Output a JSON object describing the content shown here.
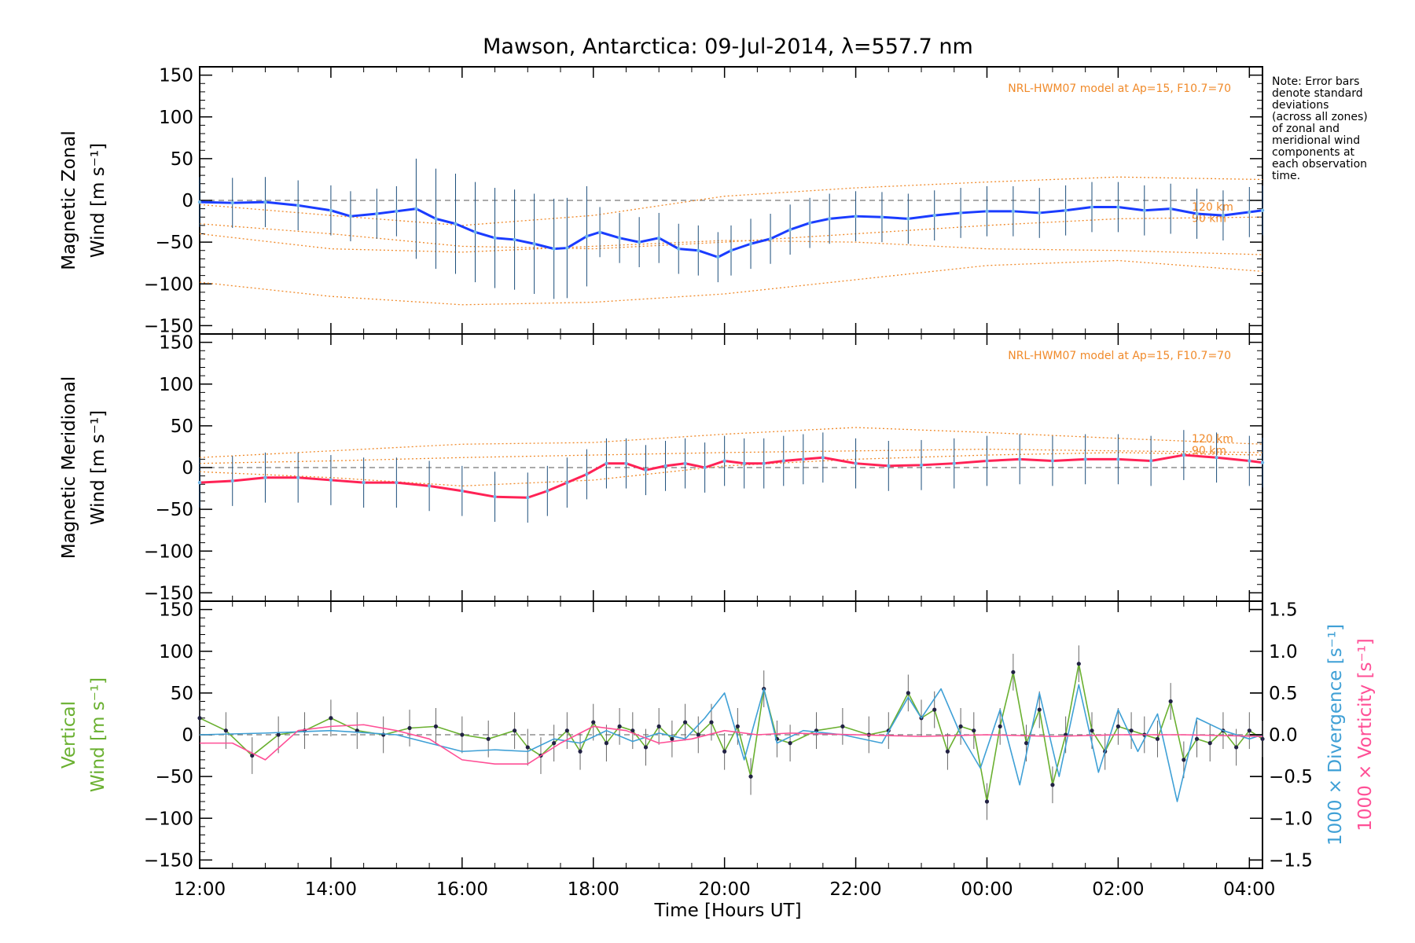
{
  "title": "Mawson, Antarctica: 09-Jul-2014, λ=557.7 nm",
  "note": [
    "Note: Error bars",
    "denote standard",
    "deviations",
    "(across all zones)",
    "of zonal and",
    "meridional wind",
    "components at",
    "each observation",
    "time."
  ],
  "xlabel": "Time [Hours UT]",
  "colors": {
    "zonal": "#1a3cff",
    "zonal_light": "#6fb6e8",
    "meridional": "#ff2255",
    "vertical": "#6ab030",
    "divergence": "#3fa0d6",
    "vorticity": "#ff4f96",
    "model": "#f08a2a",
    "scatter": "#9a9ae8"
  },
  "chart_data": [
    {
      "type": "line",
      "panel": "zonal",
      "ylabel_1": "Magnetic Zonal",
      "ylabel_2": "Wind [m s⁻¹]",
      "model_label": "NRL-HWM07 model at Ap=15, F10.7=70",
      "model_alt_labels": [
        "120 km",
        "90 km"
      ],
      "xlim_hours": [
        12,
        28.2
      ],
      "ylim": [
        -160,
        160
      ],
      "yticks": [
        150,
        100,
        50,
        0,
        -50,
        -100,
        -150
      ],
      "xticks": [
        "12:00",
        "14:00",
        "16:00",
        "18:00",
        "20:00",
        "22:00",
        "00:00",
        "02:00",
        "04:00"
      ],
      "series": [
        {
          "x": [
            12.0,
            12.5,
            13.0,
            13.5,
            14.0,
            14.3,
            14.7,
            15.0,
            15.3,
            15.6,
            15.9,
            16.2,
            16.5,
            16.8,
            17.1,
            17.4,
            17.6,
            17.9,
            18.1,
            18.4,
            18.7,
            19.0,
            19.3,
            19.6,
            19.9,
            20.1,
            20.4,
            20.7,
            21.0,
            21.3,
            21.6,
            22.0,
            22.4,
            22.8,
            23.2,
            23.6,
            24.0,
            24.4,
            24.8,
            25.2,
            25.6,
            26.0,
            26.4,
            26.8,
            27.2,
            27.6,
            28.0,
            28.2
          ],
          "y": [
            -2,
            -3,
            -2,
            -6,
            -12,
            -19,
            -16,
            -13,
            -10,
            -22,
            -28,
            -38,
            -45,
            -47,
            -52,
            -58,
            -57,
            -43,
            -38,
            -45,
            -50,
            -45,
            -58,
            -60,
            -68,
            -60,
            -52,
            -46,
            -35,
            -27,
            -22,
            -19,
            -20,
            -22,
            -18,
            -15,
            -13,
            -13,
            -15,
            -12,
            -8,
            -8,
            -12,
            -10,
            -16,
            -18,
            -14,
            -12
          ]
        }
      ],
      "model_curves": [
        {
          "x": [
            12,
            14,
            16,
            18,
            20,
            22,
            24,
            26,
            28.2
          ],
          "y": [
            -98,
            -115,
            -125,
            -122,
            -112,
            -95,
            -78,
            -72,
            -85
          ]
        },
        {
          "x": [
            12,
            14,
            16,
            18,
            20,
            22,
            24,
            26,
            28.2
          ],
          "y": [
            -28,
            -40,
            -55,
            -58,
            -50,
            -40,
            -30,
            -22,
            -20
          ]
        },
        {
          "x": [
            12,
            14,
            16,
            18,
            20,
            22,
            24,
            26,
            28.2
          ],
          "y": [
            -5,
            -18,
            -30,
            -18,
            5,
            15,
            22,
            28,
            25
          ]
        },
        {
          "x": [
            12,
            14,
            16,
            18,
            20,
            22,
            24,
            26,
            28.2
          ],
          "y": [
            -40,
            -58,
            -62,
            -55,
            -48,
            -50,
            -58,
            -60,
            -65
          ]
        }
      ]
    },
    {
      "type": "line",
      "panel": "meridional",
      "ylabel_1": "Magnetic Meridional",
      "ylabel_2": "Wind [m s⁻¹]",
      "model_label": "NRL-HWM07 model at Ap=15, F10.7=70",
      "model_alt_labels": [
        "120 km",
        "90 km"
      ],
      "xlim_hours": [
        12,
        28.2
      ],
      "ylim": [
        -160,
        160
      ],
      "yticks": [
        150,
        100,
        50,
        0,
        -50,
        -100,
        -150
      ],
      "xticks": [
        "12:00",
        "14:00",
        "16:00",
        "18:00",
        "20:00",
        "22:00",
        "00:00",
        "02:00",
        "04:00"
      ],
      "series": [
        {
          "x": [
            12.0,
            12.5,
            13.0,
            13.5,
            14.0,
            14.5,
            15.0,
            15.5,
            16.0,
            16.5,
            17.0,
            17.3,
            17.6,
            17.9,
            18.2,
            18.5,
            18.8,
            19.1,
            19.4,
            19.7,
            20.0,
            20.3,
            20.6,
            20.9,
            21.2,
            21.5,
            22.0,
            22.5,
            23.0,
            23.5,
            24.0,
            24.5,
            25.0,
            25.5,
            26.0,
            26.5,
            27.0,
            27.5,
            28.0,
            28.2
          ],
          "y": [
            -18,
            -16,
            -12,
            -12,
            -15,
            -18,
            -18,
            -22,
            -28,
            -35,
            -36,
            -28,
            -18,
            -8,
            5,
            5,
            -3,
            2,
            5,
            0,
            8,
            5,
            5,
            8,
            10,
            12,
            5,
            2,
            3,
            5,
            8,
            10,
            8,
            10,
            10,
            8,
            15,
            12,
            8,
            6
          ]
        }
      ],
      "model_curves": [
        {
          "x": [
            12,
            14,
            16,
            18,
            20,
            22,
            24,
            26,
            28.2
          ],
          "y": [
            12,
            20,
            28,
            30,
            40,
            48,
            42,
            35,
            28
          ]
        },
        {
          "x": [
            12,
            14,
            16,
            18,
            20,
            22,
            24,
            26,
            28.2
          ],
          "y": [
            5,
            8,
            12,
            15,
            18,
            20,
            22,
            20,
            18
          ]
        },
        {
          "x": [
            12,
            14,
            16,
            18,
            20,
            22,
            24,
            26,
            28.2
          ],
          "y": [
            -5,
            -12,
            -22,
            -15,
            2,
            10,
            15,
            18,
            15
          ]
        }
      ]
    },
    {
      "type": "line",
      "panel": "vertical",
      "ylabel_1": "Vertical",
      "ylabel_2": "Wind [m s⁻¹]",
      "ylabel_right_1": "1000 × Divergence [s⁻¹]",
      "ylabel_right_2": "1000 × Vorticity [s⁻¹]",
      "xlim_hours": [
        12,
        28.2
      ],
      "ylim": [
        -160,
        160
      ],
      "yticks": [
        150,
        100,
        50,
        0,
        -50,
        -100,
        -150
      ],
      "y2lim": [
        -1.6,
        1.6
      ],
      "y2ticks": [
        1.5,
        1.0,
        0.5,
        0.0,
        -0.5,
        -1.0,
        -1.5
      ],
      "y2ticklabels": [
        "1.5",
        "1.0",
        "0.5",
        "0.0",
        "−0.5",
        "−1.0",
        "−1.5"
      ],
      "xticks": [
        "12:00",
        "14:00",
        "16:00",
        "18:00",
        "20:00",
        "22:00",
        "00:00",
        "02:00",
        "04:00"
      ],
      "series": [
        {
          "name": "Vertical Wind",
          "x": [
            12.0,
            12.4,
            12.8,
            13.2,
            13.6,
            14.0,
            14.4,
            14.8,
            15.2,
            15.6,
            16.0,
            16.4,
            16.8,
            17.0,
            17.2,
            17.4,
            17.6,
            17.8,
            18.0,
            18.2,
            18.4,
            18.6,
            18.8,
            19.0,
            19.2,
            19.4,
            19.6,
            19.8,
            20.0,
            20.2,
            20.4,
            20.6,
            20.8,
            21.0,
            21.4,
            21.8,
            22.2,
            22.5,
            22.8,
            23.0,
            23.2,
            23.4,
            23.6,
            23.8,
            24.0,
            24.2,
            24.4,
            24.6,
            24.8,
            25.0,
            25.2,
            25.4,
            25.6,
            25.8,
            26.0,
            26.2,
            26.4,
            26.6,
            26.8,
            27.0,
            27.2,
            27.4,
            27.6,
            27.8,
            28.0,
            28.2
          ],
          "y": [
            20,
            5,
            -25,
            0,
            5,
            20,
            5,
            0,
            8,
            10,
            0,
            -5,
            5,
            -15,
            -25,
            -10,
            5,
            -20,
            15,
            -10,
            10,
            5,
            -15,
            10,
            -5,
            15,
            0,
            15,
            -20,
            10,
            -50,
            55,
            -5,
            -10,
            5,
            10,
            0,
            5,
            50,
            20,
            30,
            -20,
            10,
            5,
            -80,
            10,
            75,
            -10,
            30,
            -60,
            0,
            85,
            5,
            -20,
            10,
            5,
            0,
            -5,
            40,
            -30,
            -5,
            -10,
            5,
            -15,
            5,
            -5
          ]
        },
        {
          "name": "Divergence",
          "axis": "right",
          "x": [
            12.0,
            13.0,
            14.0,
            15.0,
            16.0,
            16.5,
            17.0,
            17.4,
            17.8,
            18.2,
            18.6,
            19.0,
            19.4,
            19.7,
            20.0,
            20.3,
            20.6,
            20.8,
            21.2,
            21.8,
            22.4,
            22.8,
            23.0,
            23.3,
            23.6,
            23.9,
            24.2,
            24.5,
            24.8,
            25.1,
            25.4,
            25.7,
            26.0,
            26.3,
            26.6,
            26.9,
            27.2,
            27.6,
            28.0,
            28.2
          ],
          "y": [
            0.0,
            0.02,
            0.05,
            0.0,
            -0.2,
            -0.18,
            -0.2,
            -0.05,
            -0.1,
            0.05,
            -0.08,
            0.02,
            -0.05,
            0.2,
            0.5,
            -0.3,
            0.55,
            -0.1,
            0.05,
            0.0,
            -0.1,
            0.45,
            0.2,
            0.55,
            0.0,
            -0.4,
            0.3,
            -0.6,
            0.5,
            -0.5,
            0.6,
            -0.45,
            0.3,
            -0.2,
            0.25,
            -0.8,
            0.2,
            0.05,
            -0.05,
            0.0
          ]
        },
        {
          "name": "Vorticity",
          "axis": "right",
          "x": [
            12.0,
            12.5,
            13.0,
            13.5,
            14.0,
            14.5,
            15.0,
            15.5,
            16.0,
            16.5,
            17.0,
            17.5,
            18.0,
            18.5,
            19.0,
            19.5,
            20.0,
            20.5,
            21.0,
            22.0,
            23.0,
            24.0,
            25.0,
            26.0,
            27.0,
            28.2
          ],
          "y": [
            -0.1,
            -0.1,
            -0.3,
            0.05,
            0.1,
            0.12,
            0.05,
            -0.05,
            -0.3,
            -0.35,
            -0.35,
            -0.1,
            0.1,
            0.05,
            -0.1,
            -0.05,
            0.05,
            0.0,
            0.02,
            0.0,
            -0.02,
            0.0,
            -0.02,
            0.0,
            0.0,
            -0.02
          ]
        }
      ]
    }
  ]
}
